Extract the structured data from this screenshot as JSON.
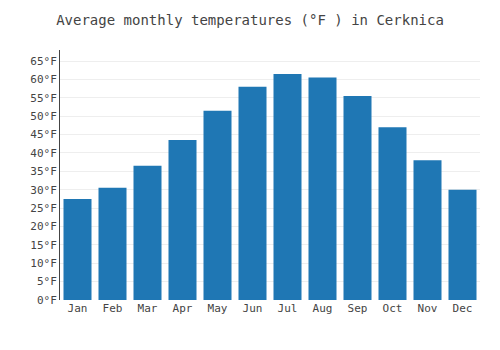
{
  "chart_data": {
    "type": "bar",
    "title": "Average monthly temperatures (°F ) in Cerknica",
    "categories": [
      "Jan",
      "Feb",
      "Mar",
      "Apr",
      "May",
      "Jun",
      "Jul",
      "Aug",
      "Sep",
      "Oct",
      "Nov",
      "Dec"
    ],
    "values": [
      27.5,
      30.5,
      36.5,
      43.5,
      51.5,
      58.0,
      61.5,
      60.5,
      55.5,
      47.0,
      38.0,
      30.0
    ],
    "ylim": [
      0,
      68
    ],
    "yticks": [
      {
        "value": 0,
        "label": "0°F"
      },
      {
        "value": 5,
        "label": "5°F"
      },
      {
        "value": 10,
        "label": "10°F"
      },
      {
        "value": 15,
        "label": "15°F"
      },
      {
        "value": 20,
        "label": "20°F"
      },
      {
        "value": 25,
        "label": "25°F"
      },
      {
        "value": 30,
        "label": "30°F"
      },
      {
        "value": 35,
        "label": "35°F"
      },
      {
        "value": 40,
        "label": "40°F"
      },
      {
        "value": 45,
        "label": "45°F"
      },
      {
        "value": 50,
        "label": "50°F"
      },
      {
        "value": 55,
        "label": "55°F"
      },
      {
        "value": 60,
        "label": "60°F"
      },
      {
        "value": 65,
        "label": "65°F"
      }
    ],
    "grid": true
  }
}
